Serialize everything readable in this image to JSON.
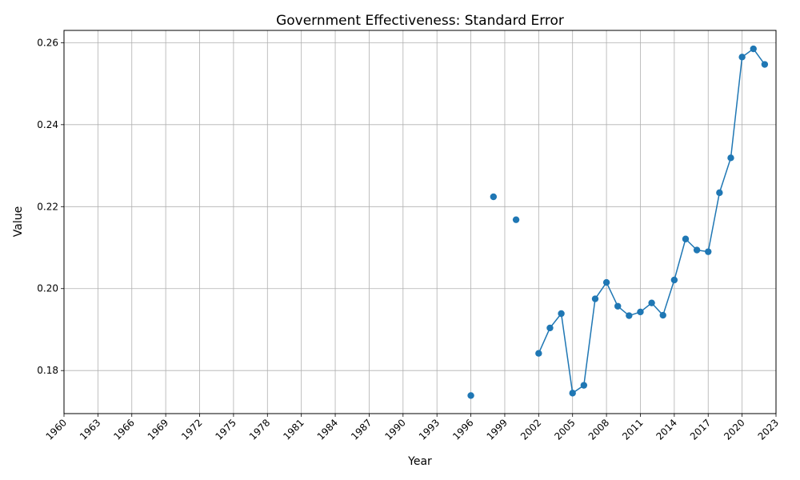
{
  "chart_data": {
    "type": "line",
    "title": "Government Effectiveness: Standard Error",
    "xlabel": "Year",
    "ylabel": "Value",
    "xlim": [
      1960,
      2023
    ],
    "ylim": [
      0.1695,
      0.263
    ],
    "x_ticks": [
      1960,
      1963,
      1966,
      1969,
      1972,
      1975,
      1978,
      1981,
      1984,
      1987,
      1990,
      1993,
      1996,
      1999,
      2002,
      2005,
      2008,
      2011,
      2014,
      2017,
      2020,
      2023
    ],
    "y_ticks": [
      0.18,
      0.2,
      0.22,
      0.24,
      0.26
    ],
    "grid": true,
    "line_color": "#1f77b4",
    "series": [
      {
        "points": [
          {
            "x": 1996,
            "y": 0.1739
          },
          {
            "x": 1998,
            "y": 0.2224
          },
          {
            "x": 2000,
            "y": 0.2168
          },
          {
            "x": 2002,
            "y": 0.1842
          },
          {
            "x": 2003,
            "y": 0.1904
          },
          {
            "x": 2004,
            "y": 0.1939
          },
          {
            "x": 2005,
            "y": 0.1745
          },
          {
            "x": 2006,
            "y": 0.1764
          },
          {
            "x": 2007,
            "y": 0.1975
          },
          {
            "x": 2008,
            "y": 0.2015
          },
          {
            "x": 2009,
            "y": 0.1957
          },
          {
            "x": 2010,
            "y": 0.1934
          },
          {
            "x": 2011,
            "y": 0.1943
          },
          {
            "x": 2012,
            "y": 0.1965
          },
          {
            "x": 2013,
            "y": 0.1935
          },
          {
            "x": 2014,
            "y": 0.2021
          },
          {
            "x": 2015,
            "y": 0.2121
          },
          {
            "x": 2016,
            "y": 0.2094
          },
          {
            "x": 2017,
            "y": 0.209
          },
          {
            "x": 2018,
            "y": 0.2234
          },
          {
            "x": 2019,
            "y": 0.2319
          },
          {
            "x": 2020,
            "y": 0.2565
          },
          {
            "x": 2021,
            "y": 0.2585
          },
          {
            "x": 2022,
            "y": 0.2547
          }
        ]
      }
    ]
  }
}
